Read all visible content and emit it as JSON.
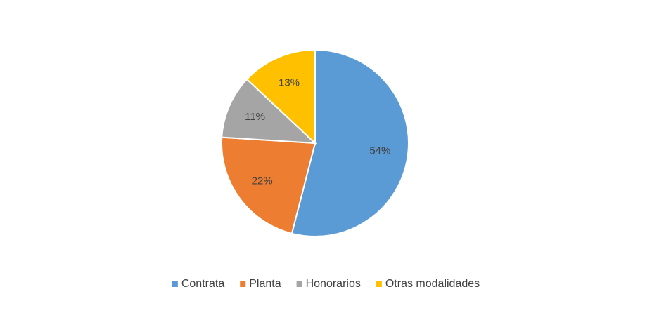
{
  "chart_data": {
    "type": "pie",
    "categories": [
      "Contrata",
      "Planta",
      "Honorarios",
      "Otras modalidades"
    ],
    "values": [
      54,
      22,
      11,
      13
    ],
    "value_labels": [
      "54%",
      "22%",
      "11%",
      "13%"
    ],
    "colors": [
      "#5b9bd5",
      "#ed7d31",
      "#a5a5a5",
      "#ffc000"
    ],
    "legend": "bottom"
  }
}
